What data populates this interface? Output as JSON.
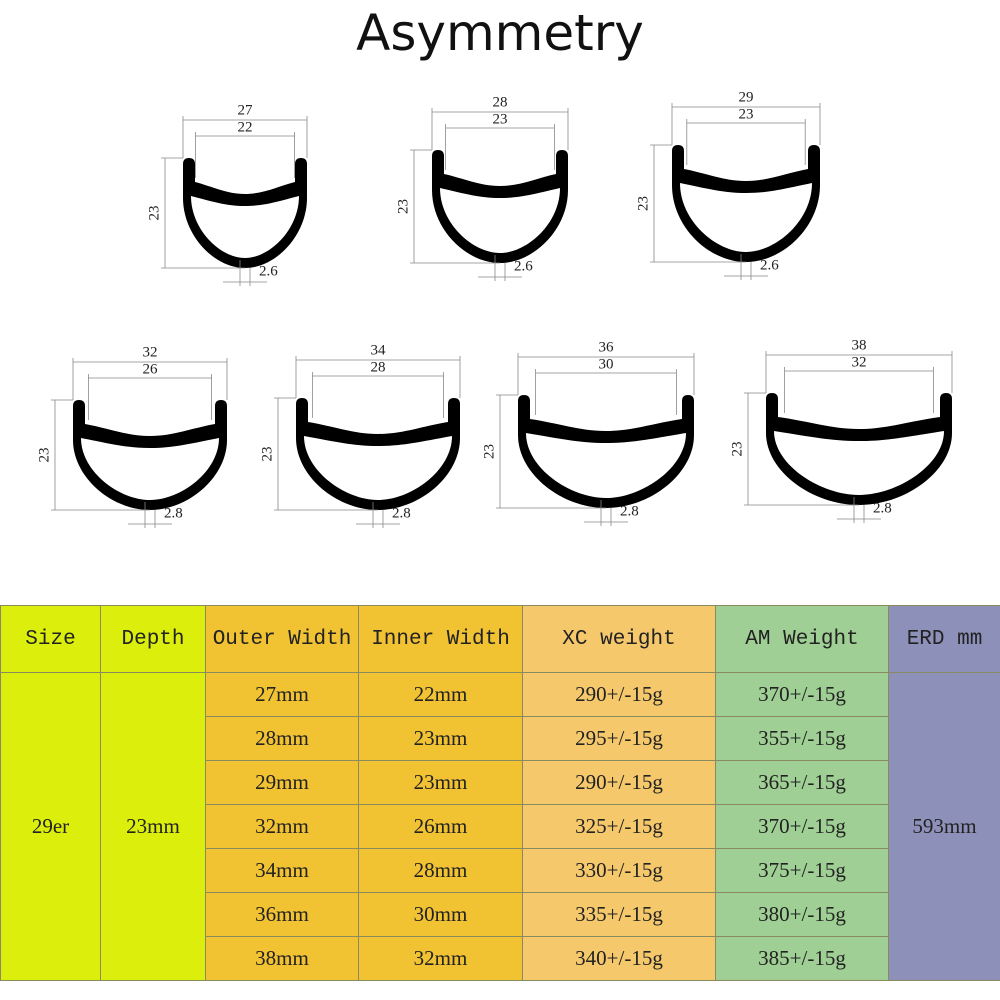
{
  "title": "Asymmetry",
  "profiles": [
    {
      "outer": "27",
      "inner": "22",
      "depth": "23",
      "bottom": "2.6"
    },
    {
      "outer": "28",
      "inner": "23",
      "depth": "23",
      "bottom": "2.6"
    },
    {
      "outer": "29",
      "inner": "23",
      "depth": "23",
      "bottom": "2.6"
    },
    {
      "outer": "32",
      "inner": "26",
      "depth": "23",
      "bottom": "2.8"
    },
    {
      "outer": "34",
      "inner": "28",
      "depth": "23",
      "bottom": "2.8"
    },
    {
      "outer": "36",
      "inner": "30",
      "depth": "23",
      "bottom": "2.8"
    },
    {
      "outer": "38",
      "inner": "32",
      "depth": "23",
      "bottom": "2.8"
    }
  ],
  "table": {
    "headers": [
      "Size",
      "Depth",
      "Outer Width",
      "Inner Width",
      "XC weight",
      "AM Weight",
      "ERD mm"
    ],
    "size": "29er",
    "depth": "23mm",
    "erd": "593mm",
    "rows": [
      [
        "27mm",
        "22mm",
        "290+/-15g",
        "370+/-15g"
      ],
      [
        "28mm",
        "23mm",
        "295+/-15g",
        "355+/-15g"
      ],
      [
        "29mm",
        "23mm",
        "290+/-15g",
        "365+/-15g"
      ],
      [
        "32mm",
        "26mm",
        "325+/-15g",
        "370+/-15g"
      ],
      [
        "34mm",
        "28mm",
        "330+/-15g",
        "375+/-15g"
      ],
      [
        "36mm",
        "30mm",
        "335+/-15g",
        "380+/-15g"
      ],
      [
        "38mm",
        "32mm",
        "340+/-15g",
        "385+/-15g"
      ]
    ]
  }
}
